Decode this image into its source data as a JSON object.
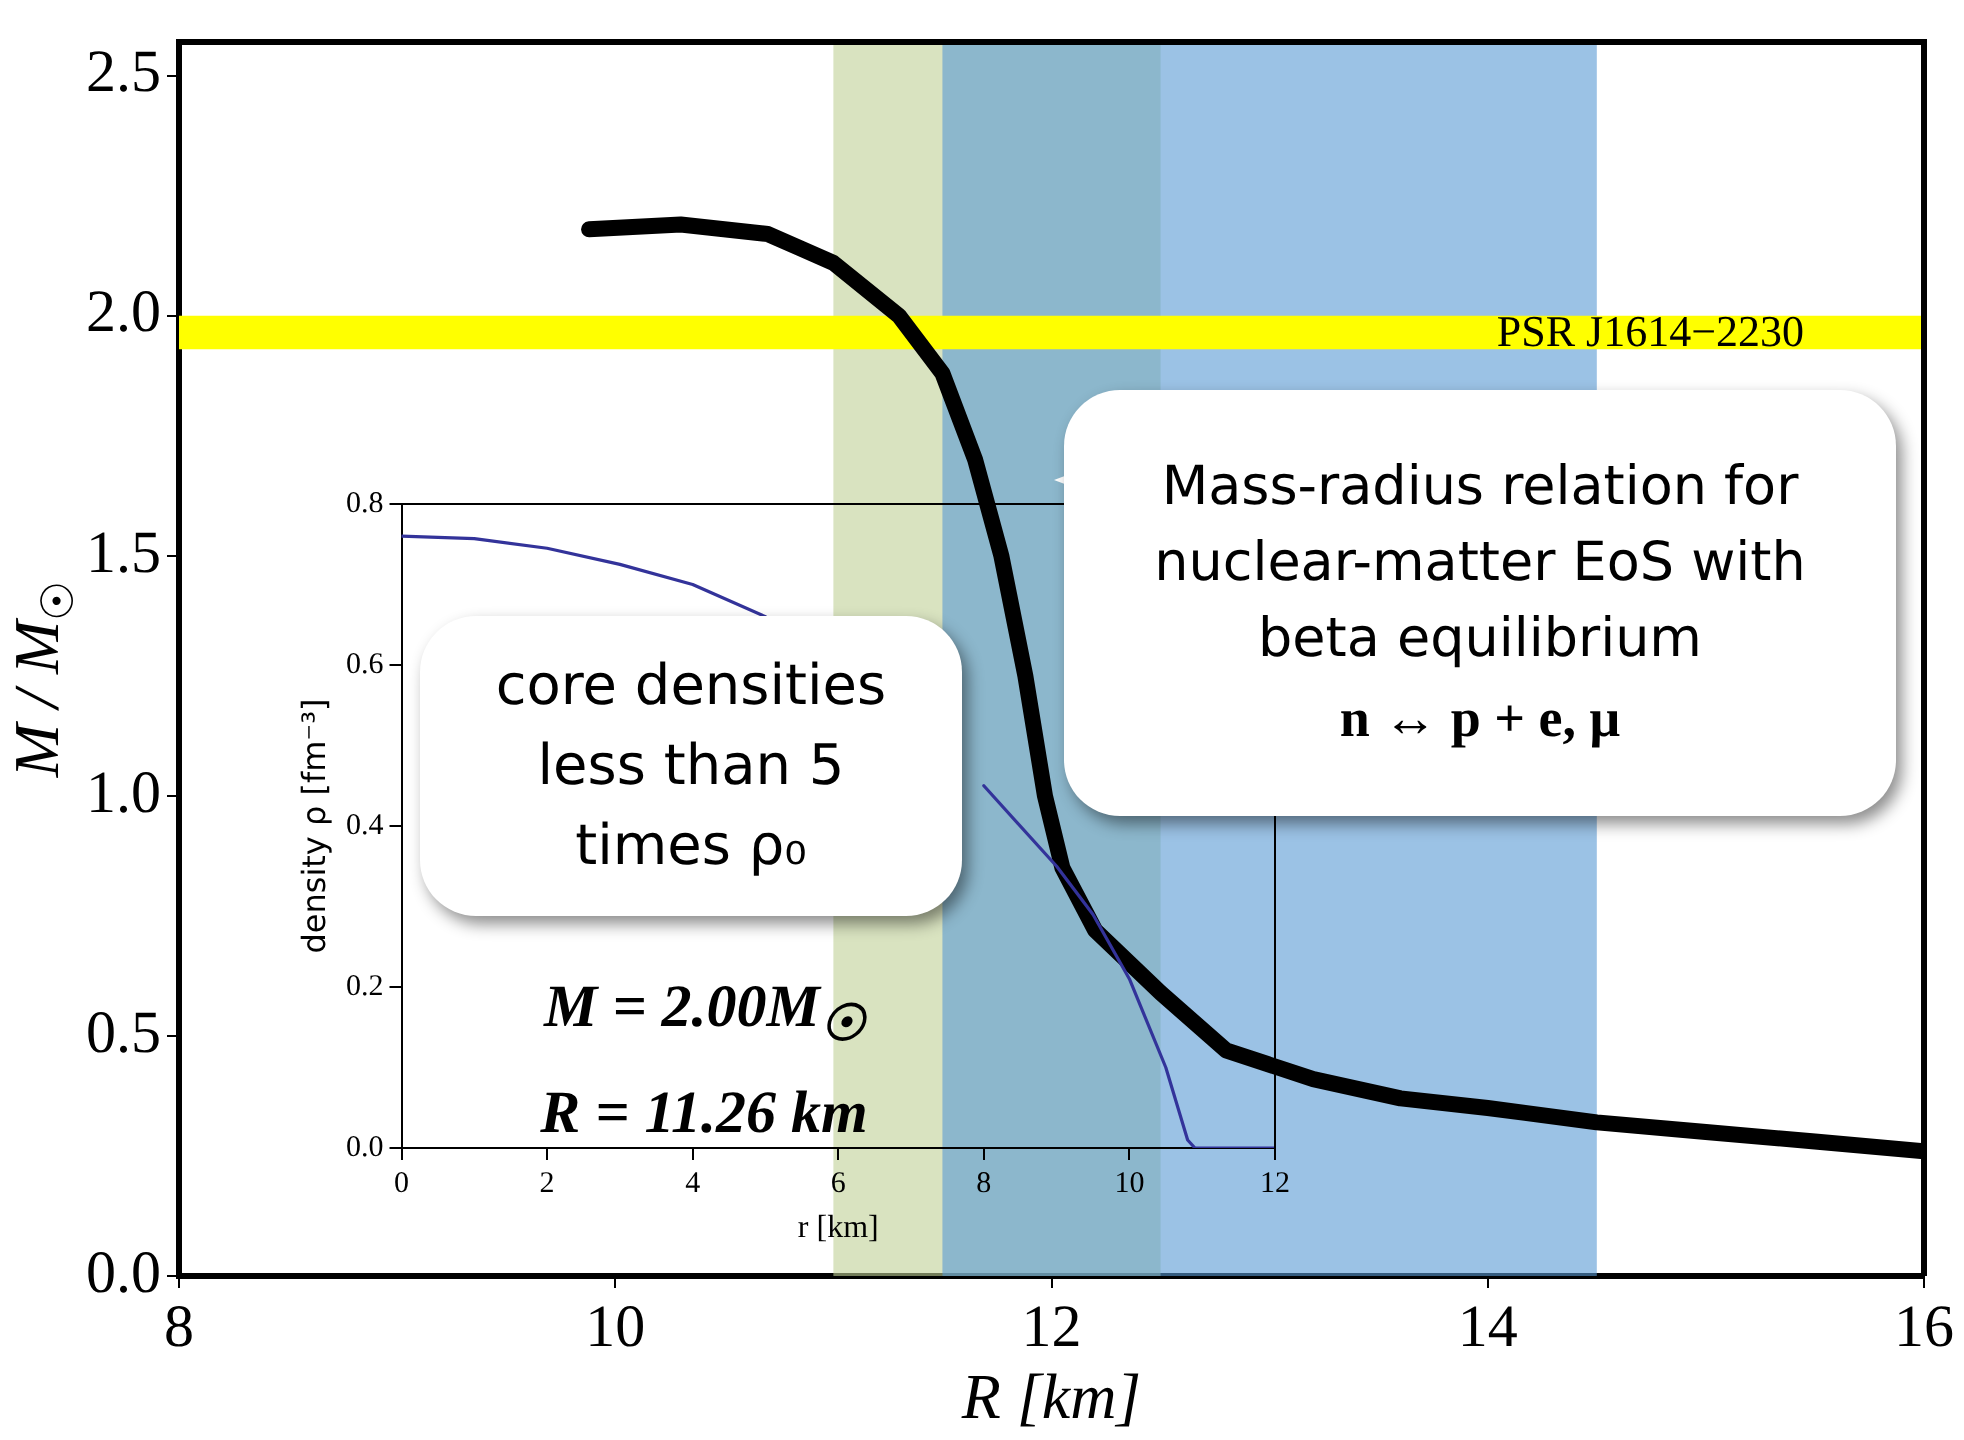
{
  "chart_data": [
    {
      "type": "line",
      "xlabel": "R [km]",
      "ylabel": "M / M$_{☉}$",
      "color": "#000000",
      "x": [
        9.88,
        10.3,
        10.7,
        11.0,
        11.3,
        11.5,
        11.65,
        11.77,
        11.88,
        11.97,
        12.05,
        12.2,
        12.5,
        12.8,
        13.2,
        13.6,
        14.0,
        14.5,
        15.0,
        15.5,
        16.0
      ],
      "values": [
        2.18,
        2.19,
        2.17,
        2.11,
        2.0,
        1.88,
        1.7,
        1.5,
        1.25,
        1.0,
        0.85,
        0.72,
        0.59,
        0.47,
        0.41,
        0.37,
        0.35,
        0.32,
        0.3,
        0.28,
        0.26
      ],
      "xlim": [
        8,
        16
      ],
      "ylim": [
        0,
        2.57
      ],
      "xticks": [
        8,
        10,
        12,
        14,
        16
      ],
      "yticks": [
        {
          "value": 0,
          "label": "0.0"
        },
        {
          "value": 0.5,
          "label": "0.5"
        },
        {
          "value": 1,
          "label": "1.0"
        },
        {
          "value": 1.5,
          "label": "1.5"
        },
        {
          "value": 2,
          "label": "2.0"
        },
        {
          "value": 2.5,
          "label": "2.5"
        }
      ],
      "bands": [
        {
          "axis": "x",
          "from": 11,
          "to": 12.5,
          "color": "#c0d096"
        },
        {
          "axis": "x",
          "from": 11.5,
          "to": 14.5,
          "color": "#5899d4"
        },
        {
          "axis": "y",
          "from": 1.93,
          "to": 2.0,
          "label": "PSR J1614−2230",
          "color": "#ffff00"
        }
      ],
      "annotations": [
        "Mass-radius relation for nuclear-matter EoS with beta equilibrium",
        "n ↔ p + e, μ"
      ]
    },
    {
      "type": "line",
      "xlabel": "r [km]",
      "ylabel": "density ρ [fm⁻³]",
      "color": "#33339a",
      "x": [
        0,
        1,
        2,
        3,
        4,
        5,
        6,
        7,
        8,
        9,
        9.5,
        10,
        10.5,
        10.8,
        10.9,
        12
      ],
      "values": [
        0.76,
        0.757,
        0.745,
        0.725,
        0.7,
        0.66,
        null,
        null,
        0.45,
        0.35,
        0.29,
        0.21,
        0.1,
        0.01,
        0,
        0
      ],
      "xlim": [
        0,
        12
      ],
      "ylim": [
        0,
        0.8
      ],
      "xticks": [
        0,
        2,
        4,
        6,
        8,
        10,
        12
      ],
      "yticks": [
        {
          "value": 0,
          "label": "0.0"
        },
        {
          "value": 0.2,
          "label": "0.2"
        },
        {
          "value": 0.4,
          "label": "0.4"
        },
        {
          "value": 0.6,
          "label": "0.6"
        },
        {
          "value": 0.8,
          "label": "0.8"
        }
      ],
      "annotations": [
        "core densities less than 5 times ρ₀",
        "M = 2.00M$_{☉}$",
        "R = 11.26 km"
      ]
    }
  ]
}
